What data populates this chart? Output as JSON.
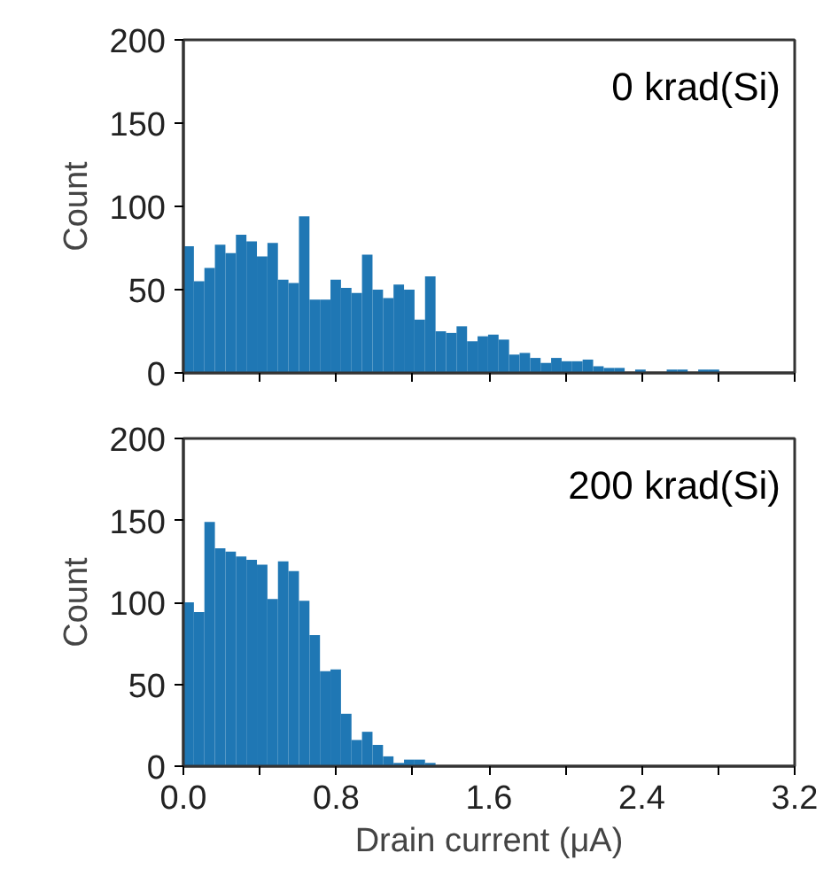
{
  "chart_data": [
    {
      "type": "histogram",
      "ylabel": "Count",
      "annotations": [
        "0 krad(Si)"
      ],
      "color": "#1f77b4",
      "tick_labels": "y",
      "bins": [
        0,
        0.055,
        0.11,
        0.165,
        0.22,
        0.275,
        0.33,
        0.385,
        0.44,
        0.495,
        0.55,
        0.605,
        0.66,
        0.715,
        0.77,
        0.825,
        0.88,
        0.935,
        0.99,
        1.045,
        1.1,
        1.155,
        1.21,
        1.265,
        1.32,
        1.375,
        1.43,
        1.485,
        1.54,
        1.595,
        1.65,
        1.705,
        1.76,
        1.815,
        1.87,
        1.925,
        1.98,
        2.035,
        2.09,
        2.145,
        2.2,
        2.255,
        2.31,
        2.365,
        2.42,
        2.475,
        2.53,
        2.585,
        2.64,
        2.695,
        2.75,
        2.805
      ],
      "values": [
        76,
        55,
        63,
        77,
        72,
        83,
        79,
        70,
        78,
        56,
        54,
        94,
        44,
        44,
        56,
        51,
        48,
        71,
        50,
        45,
        53,
        50,
        32,
        58,
        25,
        24,
        28,
        19,
        22,
        23,
        20,
        11,
        12,
        9,
        6,
        9,
        7,
        7,
        8,
        4,
        3,
        3,
        0,
        2,
        0,
        0,
        2,
        2,
        0,
        2,
        2
      ],
      "xlim": [
        0,
        3.2
      ],
      "xticks": [
        {
          "value": 0,
          "label": null
        },
        {
          "value": 0.4,
          "label": null
        },
        {
          "value": 0.8,
          "label": null
        },
        {
          "value": 1.2,
          "label": null
        },
        {
          "value": 1.6,
          "label": null
        },
        {
          "value": 2.0,
          "label": null
        },
        {
          "value": 2.4,
          "label": null
        },
        {
          "value": 2.8,
          "label": null
        },
        {
          "value": 3.2,
          "label": null
        }
      ],
      "ylim": [
        0,
        200
      ],
      "yticks": [
        0,
        50,
        100,
        150,
        200
      ]
    },
    {
      "type": "histogram",
      "ylabel": "Count",
      "xlabel": "Drain current (μA)",
      "annotations": [
        "200 krad(Si)"
      ],
      "color": "#1f77b4",
      "bins": [
        0,
        0.055,
        0.11,
        0.165,
        0.22,
        0.275,
        0.33,
        0.385,
        0.44,
        0.495,
        0.55,
        0.605,
        0.66,
        0.715,
        0.77,
        0.825,
        0.88,
        0.935,
        0.99,
        1.045,
        1.1,
        1.155,
        1.21,
        1.265,
        1.32
      ],
      "values": [
        100,
        94,
        149,
        133,
        131,
        128,
        126,
        123,
        102,
        125,
        119,
        101,
        80,
        58,
        59,
        32,
        16,
        21,
        13,
        6,
        2,
        4,
        4,
        2
      ],
      "xlim": [
        0,
        3.2
      ],
      "xticks": [
        {
          "value": 0,
          "label": "0.0"
        },
        {
          "value": 0.4,
          "label": null
        },
        {
          "value": 0.8,
          "label": "0.8"
        },
        {
          "value": 1.2,
          "label": null
        },
        {
          "value": 1.6,
          "label": "1.6"
        },
        {
          "value": 2.0,
          "label": null
        },
        {
          "value": 2.4,
          "label": "2.4"
        },
        {
          "value": 2.8,
          "label": null
        },
        {
          "value": 3.2,
          "label": "3.2"
        }
      ],
      "ylim": [
        0,
        200
      ],
      "yticks": [
        0,
        50,
        100,
        150,
        200
      ]
    }
  ]
}
